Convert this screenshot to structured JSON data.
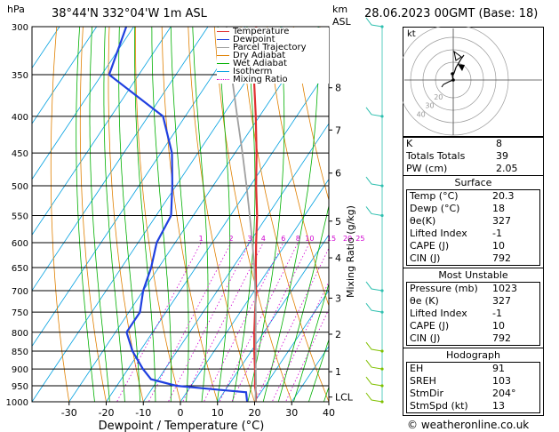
{
  "header": {
    "pressure_unit": "hPa",
    "location": "38°44'N 332°04'W 1m ASL",
    "km_label": "km",
    "asl_label": "ASL",
    "datetime": "28.06.2023 00GMT (Base: 18)"
  },
  "legend": {
    "items": [
      {
        "label": "Temperature",
        "color": "#e03030",
        "style": "solid"
      },
      {
        "label": "Dewpoint",
        "color": "#2040e0",
        "style": "solid"
      },
      {
        "label": "Parcel Trajectory",
        "color": "#a0a0a0",
        "style": "solid"
      },
      {
        "label": "Dry Adiabat",
        "color": "#e08000",
        "style": "solid"
      },
      {
        "label": "Wet Adiabat",
        "color": "#00b000",
        "style": "solid"
      },
      {
        "label": "Isotherm",
        "color": "#00a0e0",
        "style": "solid"
      },
      {
        "label": "Mixing Ratio",
        "color": "#d000d0",
        "style": "dotted"
      }
    ]
  },
  "chart_data": {
    "type": "line",
    "chart_kind": "skew-T log-P sounding",
    "xlabel": "Dewpoint / Temperature (°C)",
    "ylabel_left": "hPa",
    "ylabel_right": "Mixing Ratio (g/kg)",
    "pressure_levels": [
      300,
      350,
      400,
      450,
      500,
      550,
      600,
      650,
      700,
      750,
      800,
      850,
      900,
      950,
      1000
    ],
    "x_ticks": [
      -30,
      -20,
      -10,
      0,
      10,
      20,
      30,
      40
    ],
    "xlim": [
      -40,
      40
    ],
    "ylim": [
      1000,
      300
    ],
    "skew_degrees_per_log_p": 56,
    "km_ticks": [
      {
        "label": "8",
        "p": 365
      },
      {
        "label": "7",
        "p": 418
      },
      {
        "label": "6",
        "p": 480
      },
      {
        "label": "5",
        "p": 560
      },
      {
        "label": "4",
        "p": 630
      },
      {
        "label": "3",
        "p": 717
      },
      {
        "label": "2",
        "p": 805
      },
      {
        "label": "1",
        "p": 908
      },
      {
        "label": "LCL",
        "p": 985
      }
    ],
    "mixing_ratio_labels": [
      "1",
      "2",
      "3",
      "4",
      "6",
      "8",
      "10",
      "15",
      "20",
      "25"
    ],
    "mixing_ratio_values": [
      1,
      2,
      3,
      4,
      6,
      8,
      10,
      15,
      20,
      25
    ],
    "series": [
      {
        "name": "Temperature",
        "color": "#e03030",
        "points": [
          [
            1000,
            20.3
          ],
          [
            975,
            19
          ],
          [
            950,
            17.2
          ],
          [
            925,
            15.8
          ],
          [
            900,
            14.2
          ],
          [
            850,
            10.8
          ],
          [
            800,
            7.4
          ],
          [
            750,
            4
          ],
          [
            700,
            0.4
          ],
          [
            650,
            -3.8
          ],
          [
            600,
            -8.2
          ],
          [
            550,
            -12.8
          ],
          [
            500,
            -18.4
          ],
          [
            450,
            -24.2
          ],
          [
            400,
            -31
          ],
          [
            350,
            -39
          ],
          [
            300,
            -47
          ]
        ]
      },
      {
        "name": "Dewpoint",
        "color": "#2040e0",
        "points": [
          [
            1000,
            18
          ],
          [
            970,
            16
          ],
          [
            960,
            6
          ],
          [
            950,
            -4
          ],
          [
            930,
            -12
          ],
          [
            900,
            -16
          ],
          [
            850,
            -22
          ],
          [
            800,
            -27
          ],
          [
            750,
            -27
          ],
          [
            700,
            -30
          ],
          [
            650,
            -32
          ],
          [
            600,
            -35
          ],
          [
            550,
            -36
          ],
          [
            500,
            -41
          ],
          [
            450,
            -47
          ],
          [
            400,
            -56
          ],
          [
            350,
            -78
          ],
          [
            300,
            -82
          ]
        ]
      },
      {
        "name": "Parcel Trajectory",
        "color": "#a0a0a0",
        "points": [
          [
            1000,
            20.3
          ],
          [
            985,
            19.4
          ],
          [
            950,
            17.5
          ],
          [
            900,
            14.4
          ],
          [
            850,
            11.2
          ],
          [
            800,
            7.8
          ],
          [
            750,
            4.2
          ],
          [
            700,
            0.2
          ],
          [
            650,
            -4.2
          ],
          [
            600,
            -9.2
          ],
          [
            550,
            -14.8
          ],
          [
            500,
            -21
          ],
          [
            450,
            -28
          ],
          [
            400,
            -36
          ],
          [
            350,
            -45
          ],
          [
            300,
            -55
          ]
        ]
      }
    ],
    "hodograph": {
      "units_label": "kt",
      "ring_labels": [
        "20",
        "30",
        "40"
      ]
    },
    "wind_barb_levels": [
      300,
      400,
      500,
      550,
      700,
      750,
      850,
      900,
      950,
      1000
    ]
  },
  "indices": {
    "top": [
      {
        "label": "K",
        "value": "8"
      },
      {
        "label": "Totals Totals",
        "value": "39"
      },
      {
        "label": "PW (cm)",
        "value": "2.05"
      }
    ],
    "surface": {
      "title": "Surface",
      "rows": [
        {
          "label": "Temp (°C)",
          "value": "20.3"
        },
        {
          "label": "Dewp (°C)",
          "value": "18"
        },
        {
          "label": "θe(K)",
          "value": "327"
        },
        {
          "label": "Lifted Index",
          "value": "-1"
        },
        {
          "label": "CAPE (J)",
          "value": "10"
        },
        {
          "label": "CIN (J)",
          "value": "792"
        }
      ]
    },
    "most_unstable": {
      "title": "Most Unstable",
      "rows": [
        {
          "label": "Pressure (mb)",
          "value": "1023"
        },
        {
          "label": "θe (K)",
          "value": "327"
        },
        {
          "label": "Lifted Index",
          "value": "-1"
        },
        {
          "label": "CAPE (J)",
          "value": "10"
        },
        {
          "label": "CIN (J)",
          "value": "792"
        }
      ]
    },
    "hodograph": {
      "title": "Hodograph",
      "rows": [
        {
          "label": "EH",
          "value": "91"
        },
        {
          "label": "SREH",
          "value": "103"
        },
        {
          "label": "StmDir",
          "value": "204°"
        },
        {
          "label": "StmSpd (kt)",
          "value": "13"
        }
      ]
    }
  },
  "footer": {
    "copyright": "© weatheronline.co.uk"
  }
}
